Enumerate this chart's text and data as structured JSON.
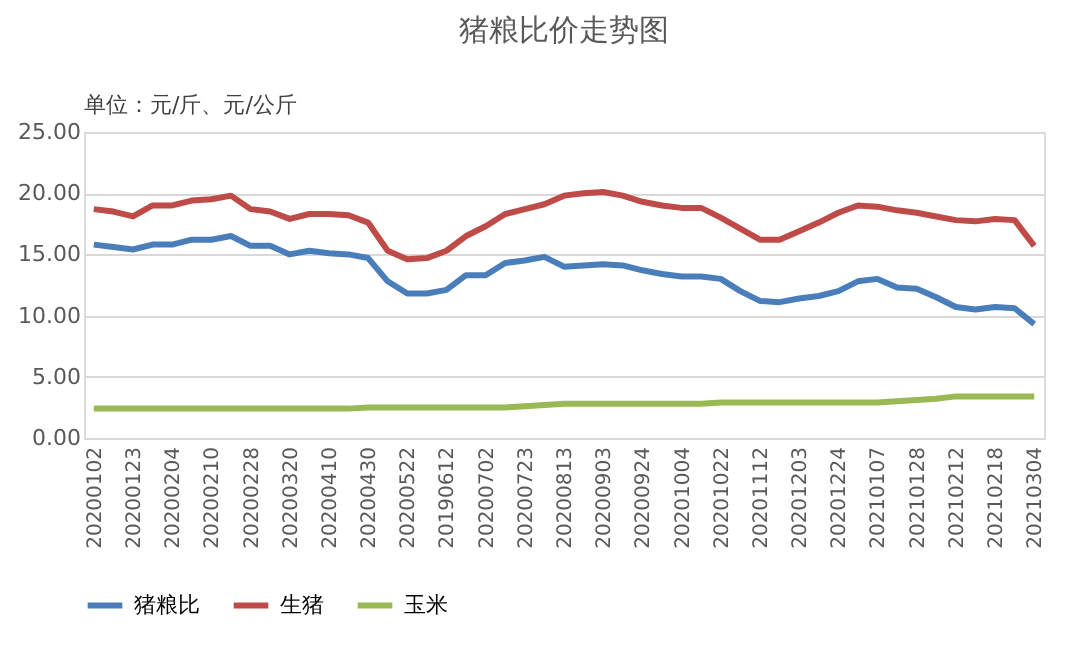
{
  "chart_data": {
    "type": "line",
    "title": "猪粮比价走势图",
    "annotations": [
      "单位：元/斤、元/公斤"
    ],
    "categories": [
      "20200102",
      null,
      "20200123",
      null,
      "20200204",
      null,
      "20200210",
      null,
      "20200228",
      null,
      "20200320",
      null,
      "20200410",
      null,
      "20200430",
      null,
      "20200522",
      null,
      "20190612",
      null,
      "20200702",
      null,
      "20200723",
      null,
      "20200813",
      null,
      "20200903",
      null,
      "20200924",
      null,
      "20201004",
      null,
      "20201022",
      null,
      "20201112",
      null,
      "20201203",
      null,
      "20201224",
      null,
      "20210107",
      null,
      "20210128",
      null,
      "20210212",
      null,
      "20210218",
      null,
      "20210304"
    ],
    "series": [
      {
        "name": "猪粮比",
        "color": "#4a7ebb",
        "values": [
          15.8,
          15.6,
          15.4,
          15.8,
          15.8,
          16.2,
          16.2,
          16.5,
          15.7,
          15.7,
          15.0,
          15.3,
          15.1,
          15.0,
          14.7,
          12.8,
          11.8,
          11.8,
          12.1,
          13.3,
          13.3,
          14.3,
          14.5,
          14.8,
          14.0,
          14.1,
          14.2,
          14.1,
          13.7,
          13.4,
          13.2,
          13.2,
          13.0,
          12.0,
          11.2,
          11.1,
          11.4,
          11.6,
          12.0,
          12.8,
          13.0,
          12.3,
          12.2,
          11.5,
          10.7,
          10.5,
          10.7,
          10.6,
          9.3
        ]
      },
      {
        "name": "生猪",
        "color": "#be4b48",
        "values": [
          18.7,
          18.5,
          18.1,
          19.0,
          19.0,
          19.4,
          19.5,
          19.8,
          18.7,
          18.5,
          17.9,
          18.3,
          18.3,
          18.2,
          17.6,
          15.3,
          14.6,
          14.7,
          15.3,
          16.5,
          17.3,
          18.3,
          18.7,
          19.1,
          19.8,
          20.0,
          20.1,
          19.8,
          19.3,
          19.0,
          18.8,
          18.8,
          18.0,
          17.1,
          16.2,
          16.2,
          16.9,
          17.6,
          18.4,
          19.0,
          18.9,
          18.6,
          18.4,
          18.1,
          17.8,
          17.7,
          17.9,
          17.8,
          15.7
        ]
      },
      {
        "name": "玉米",
        "color": "#98b954",
        "values": [
          2.4,
          2.4,
          2.4,
          2.4,
          2.4,
          2.4,
          2.4,
          2.4,
          2.4,
          2.4,
          2.4,
          2.4,
          2.4,
          2.4,
          2.5,
          2.5,
          2.5,
          2.5,
          2.5,
          2.5,
          2.5,
          2.5,
          2.6,
          2.7,
          2.8,
          2.8,
          2.8,
          2.8,
          2.8,
          2.8,
          2.8,
          2.8,
          2.9,
          2.9,
          2.9,
          2.9,
          2.9,
          2.9,
          2.9,
          2.9,
          2.9,
          3.0,
          3.1,
          3.2,
          3.4,
          3.4,
          3.4,
          3.4,
          3.4
        ]
      }
    ],
    "ylim": [
      0,
      25
    ],
    "yticks": [
      {
        "value": 0,
        "label": "0.00"
      },
      {
        "value": 5,
        "label": "5.00"
      },
      {
        "value": 10,
        "label": "10.00"
      },
      {
        "value": 15,
        "label": "15.00"
      },
      {
        "value": 20,
        "label": "20.00"
      },
      {
        "value": 25,
        "label": "25.00"
      }
    ],
    "grid": "y",
    "legend": "bottom",
    "line_style": "solid",
    "marker": "none"
  }
}
